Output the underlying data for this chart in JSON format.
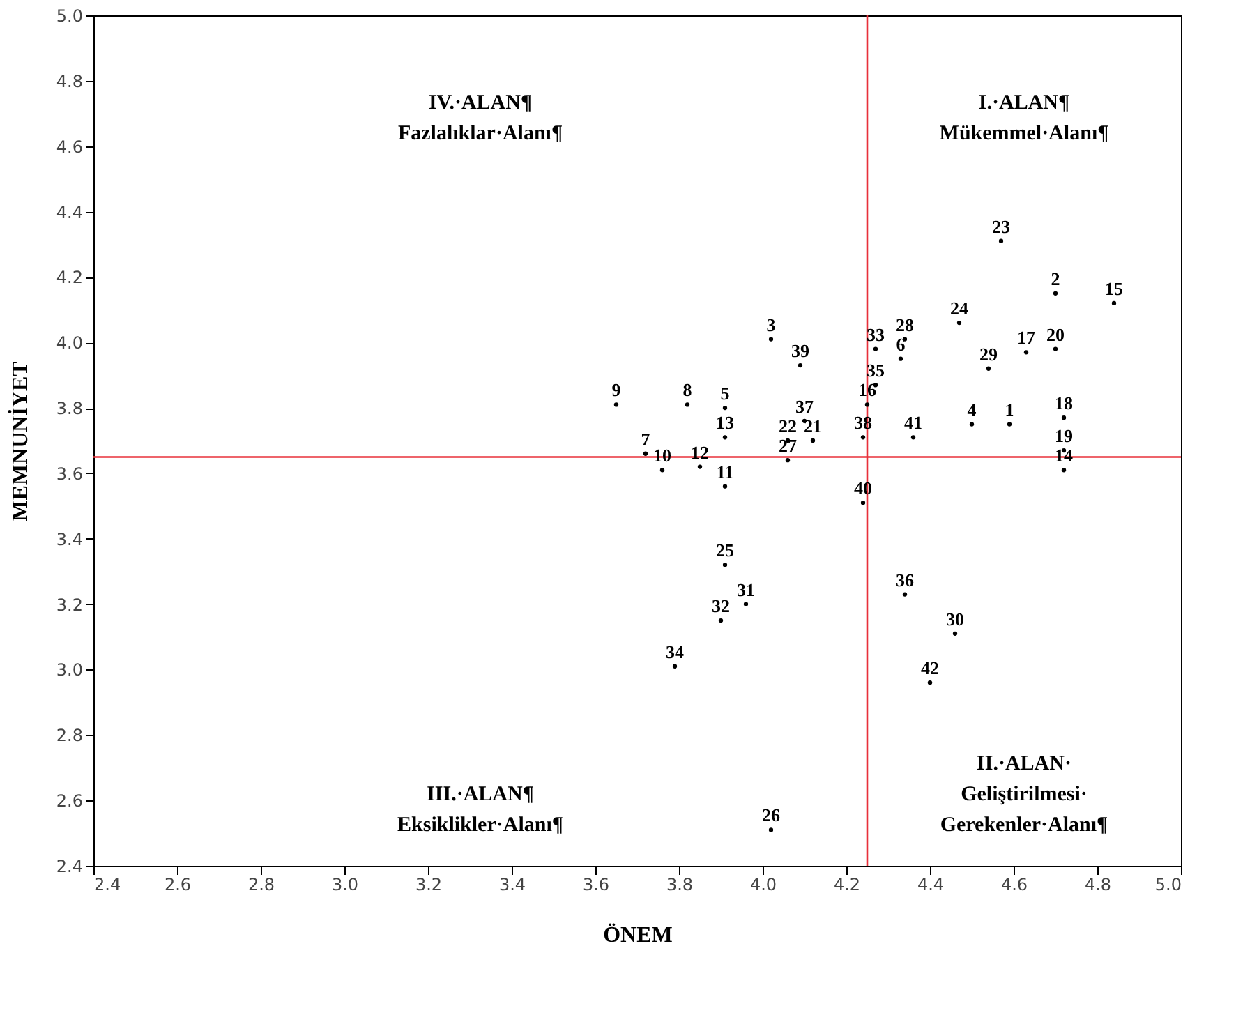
{
  "chart_data": {
    "type": "scatter",
    "xlabel": "ÖNEM",
    "ylabel": "MEMNUNİYET",
    "x": [
      4.59,
      4.7,
      4.02,
      4.5,
      3.91,
      4.33,
      3.72,
      3.82,
      3.65,
      3.76,
      3.91,
      3.85,
      3.91,
      4.72,
      4.84,
      4.25,
      4.63,
      4.72,
      4.72,
      4.7,
      4.12,
      4.06,
      4.57,
      4.47,
      3.91,
      4.02,
      4.06,
      4.34,
      4.54,
      4.46,
      3.96,
      3.9,
      4.27,
      3.79,
      4.27,
      4.34,
      4.1,
      4.24,
      4.09,
      4.24,
      4.36,
      4.4
    ],
    "series": [
      {
        "color": "#000000",
        "values": [
          3.75,
          4.15,
          4.01,
          3.75,
          3.8,
          3.95,
          3.66,
          3.81,
          3.81,
          3.61,
          3.56,
          3.62,
          3.71,
          3.61,
          4.12,
          3.81,
          3.97,
          3.77,
          3.67,
          3.98,
          3.7,
          3.7,
          4.31,
          4.06,
          3.32,
          2.51,
          3.64,
          4.01,
          3.92,
          3.11,
          3.2,
          3.15,
          3.98,
          3.01,
          3.87,
          3.23,
          3.76,
          3.71,
          3.93,
          3.51,
          3.71,
          2.96
        ]
      }
    ],
    "xlim": [
      2.4,
      5.0
    ],
    "xticks": [
      2.4,
      2.6,
      2.8,
      {
        "value": 3,
        "label": "3.0"
      },
      3.2,
      3.4,
      3.6,
      3.8,
      {
        "value": 4,
        "label": "4.0"
      },
      4.2,
      4.4,
      4.6,
      4.8,
      {
        "value": 5,
        "label": "5.0"
      }
    ],
    "ylim": [
      2.4,
      5.0
    ],
    "yticks": [
      2.4,
      2.6,
      2.8,
      {
        "value": 3,
        "label": "3.0"
      },
      3.2,
      3.4,
      3.6,
      3.8,
      {
        "value": 4,
        "label": "4.0"
      },
      4.2,
      4.4,
      4.6,
      4.8,
      {
        "value": 5,
        "label": "5.0"
      }
    ],
    "ref_lines": [
      {
        "axis": "x",
        "value": 4.25,
        "color": "#e8303a"
      },
      {
        "axis": "y",
        "value": 3.65,
        "color": "#e8303a"
      }
    ],
    "annotations": [
      "IV.·ALAN¶\nFazlalıklar·Alanı¶",
      "I.·ALAN¶\nMükemmel·Alanı¶",
      "III.·ALAN¶\nEksiklikler·Alanı¶",
      "II.·ALAN·\nGeliştirilmesi·\nGerekenler·Alanı¶",
      {
        "text": "1",
        "x": 4.59,
        "y": 3.75
      },
      {
        "text": "2",
        "x": 4.7,
        "y": 4.15
      },
      {
        "text": "3",
        "x": 4.02,
        "y": 4.01
      },
      {
        "text": "4",
        "x": 4.5,
        "y": 3.75
      },
      {
        "text": "5",
        "x": 3.91,
        "y": 3.8
      },
      {
        "text": "6",
        "x": 4.33,
        "y": 3.95
      },
      {
        "text": "7",
        "x": 3.72,
        "y": 3.66
      },
      {
        "text": "8",
        "x": 3.82,
        "y": 3.81
      },
      {
        "text": "9",
        "x": 3.65,
        "y": 3.81
      },
      {
        "text": "10",
        "x": 3.76,
        "y": 3.61
      },
      {
        "text": "11",
        "x": 3.91,
        "y": 3.56
      },
      {
        "text": "12",
        "x": 3.85,
        "y": 3.62
      },
      {
        "text": "13",
        "x": 3.91,
        "y": 3.71
      },
      {
        "text": "14",
        "x": 4.72,
        "y": 3.61
      },
      {
        "text": "15",
        "x": 4.84,
        "y": 4.12
      },
      {
        "text": "16",
        "x": 4.25,
        "y": 3.81
      },
      {
        "text": "17",
        "x": 4.63,
        "y": 3.97
      },
      {
        "text": "18",
        "x": 4.72,
        "y": 3.77
      },
      {
        "text": "19",
        "x": 4.72,
        "y": 3.67
      },
      {
        "text": "20",
        "x": 4.7,
        "y": 3.98
      },
      {
        "text": "21",
        "x": 4.12,
        "y": 3.7
      },
      {
        "text": "22",
        "x": 4.06,
        "y": 3.7
      },
      {
        "text": "23",
        "x": 4.57,
        "y": 4.31
      },
      {
        "text": "24",
        "x": 4.47,
        "y": 4.06
      },
      {
        "text": "25",
        "x": 3.91,
        "y": 3.32
      },
      {
        "text": "26",
        "x": 4.02,
        "y": 2.51
      },
      {
        "text": "27",
        "x": 4.06,
        "y": 3.64
      },
      {
        "text": "28",
        "x": 4.34,
        "y": 4.01
      },
      {
        "text": "29",
        "x": 4.54,
        "y": 3.92
      },
      {
        "text": "30",
        "x": 4.46,
        "y": 3.11
      },
      {
        "text": "31",
        "x": 3.96,
        "y": 3.2
      },
      {
        "text": "32",
        "x": 3.9,
        "y": 3.15
      },
      {
        "text": "33",
        "x": 4.27,
        "y": 3.98
      },
      {
        "text": "34",
        "x": 3.79,
        "y": 3.01
      },
      {
        "text": "35",
        "x": 4.27,
        "y": 3.87
      },
      {
        "text": "36",
        "x": 4.34,
        "y": 3.23
      },
      {
        "text": "37",
        "x": 4.1,
        "y": 3.76
      },
      {
        "text": "38",
        "x": 4.24,
        "y": 3.71
      },
      {
        "text": "39",
        "x": 4.09,
        "y": 3.93
      },
      {
        "text": "40",
        "x": 4.24,
        "y": 3.51
      },
      {
        "text": "41",
        "x": 4.36,
        "y": 3.71
      },
      {
        "text": "42",
        "x": 4.4,
        "y": 2.96
      }
    ]
  }
}
